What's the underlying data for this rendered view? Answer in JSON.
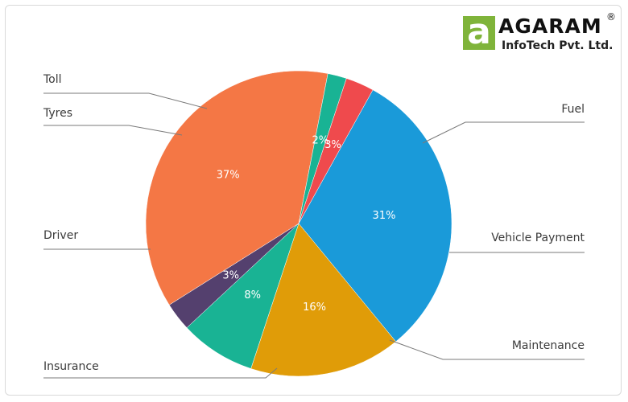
{
  "logo": {
    "name": "AGARAM",
    "registered": "®",
    "subtitle": "InfoTech Pvt. Ltd.",
    "mark_letter": "a"
  },
  "chart_data": {
    "type": "pie",
    "title": "",
    "slices": [
      {
        "label": "Fuel",
        "value": 31,
        "display": "31%",
        "color": "#1a9ad9"
      },
      {
        "label": "Vehicle Payment",
        "value": 16,
        "display": "16%",
        "color": "#e09c08"
      },
      {
        "label": "Maintenance",
        "value": 8,
        "display": "8%",
        "color": "#19b394"
      },
      {
        "label": "Insurance",
        "value": 3,
        "display": "3%",
        "color": "#54406e"
      },
      {
        "label": "Driver",
        "value": 37,
        "display": "37%",
        "color": "#f47745"
      },
      {
        "label": "Tyres",
        "value": 2,
        "display": "2%",
        "color": "#19b394"
      },
      {
        "label": "Toll",
        "value": 3,
        "display": "3%",
        "color": "#ef4a4d"
      }
    ]
  }
}
